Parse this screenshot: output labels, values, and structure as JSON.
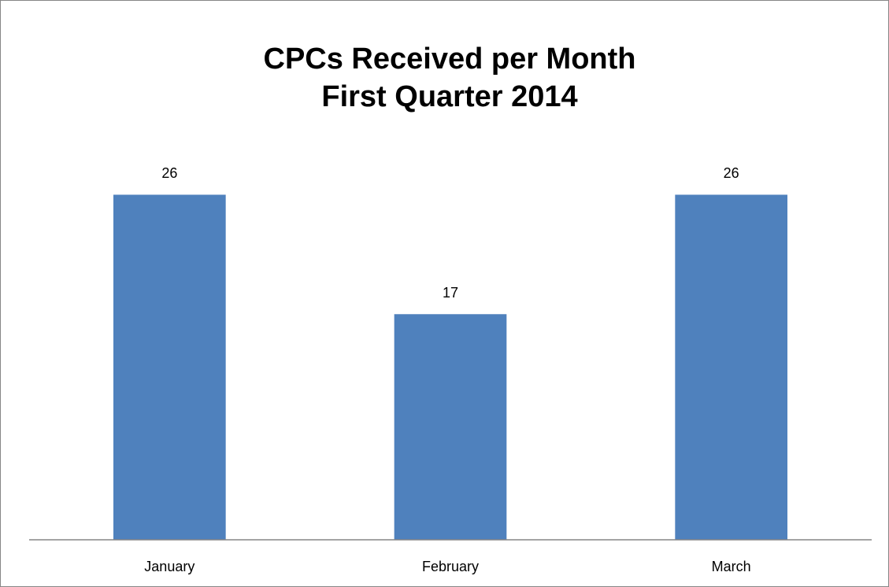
{
  "chart_data": {
    "type": "bar",
    "title": [
      "CPCs Received per Month",
      "First Quarter 2014"
    ],
    "categories": [
      "January",
      "February",
      "March"
    ],
    "values": [
      26,
      17,
      26
    ],
    "color": "#4f81bd",
    "ylim": [
      0,
      30
    ]
  }
}
